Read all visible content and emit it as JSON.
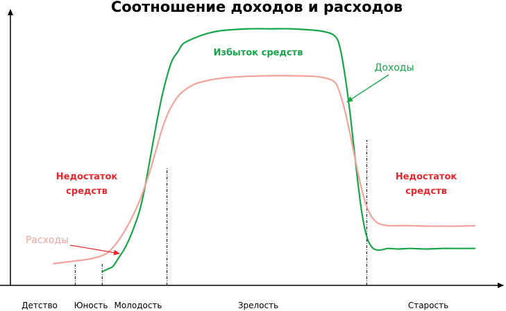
{
  "chart_data": {
    "type": "line",
    "title": "Соотношение доходов и расходов",
    "xlabel": "",
    "ylabel": "",
    "categories": [
      "Детство",
      "Юность",
      "Молодость",
      "Зрелость",
      "Старость"
    ],
    "x_boundaries": [
      12,
      17,
      29,
      66
    ],
    "xlim": [
      0,
      90
    ],
    "ylim": [
      0,
      100
    ],
    "grid": false,
    "series": [
      {
        "name": "Доходы",
        "color": "#17a54a",
        "x": [
          17,
          18,
          19,
          20,
          21,
          22,
          23,
          24,
          25,
          26,
          27,
          28,
          29,
          30,
          31,
          32,
          34,
          36,
          38,
          40,
          44,
          48,
          52,
          56,
          58,
          60,
          61,
          62,
          63,
          64,
          65,
          66,
          67,
          68,
          69,
          70,
          72,
          74,
          77,
          80,
          83,
          86
        ],
        "values": [
          5,
          6,
          7,
          10,
          13,
          17,
          22,
          28,
          37,
          48,
          59,
          69,
          77,
          83,
          86,
          89,
          91,
          92.5,
          93.5,
          94,
          94.5,
          94.5,
          94.5,
          94,
          93.5,
          92,
          88,
          77,
          62,
          44,
          28,
          18,
          14,
          13,
          13.2,
          13.6,
          13.4,
          13.6,
          13.4,
          13.6,
          13.6,
          13.6
        ]
      },
      {
        "name": "Расходы",
        "color": "#f4a29a",
        "x": [
          8,
          10,
          12,
          14,
          16,
          17,
          18,
          19,
          20,
          21,
          22,
          23,
          24,
          25,
          26,
          27,
          28,
          29,
          30,
          31,
          32,
          34,
          36,
          38,
          40,
          44,
          48,
          52,
          56,
          58,
          60,
          61,
          62,
          63,
          64,
          65,
          66,
          67,
          68,
          69,
          70,
          72,
          74,
          77,
          80,
          83,
          86
        ],
        "values": [
          8,
          8.5,
          9,
          9.5,
          10.3,
          11,
          12,
          14,
          16.5,
          19.5,
          23,
          27,
          31.5,
          37,
          43,
          50,
          57,
          62.5,
          66.5,
          69.5,
          71.5,
          74,
          75.2,
          76,
          76.5,
          77,
          77.2,
          77.2,
          77,
          76.5,
          75,
          71,
          64,
          55,
          45,
          36,
          29,
          25,
          23,
          22.3,
          22,
          22,
          22,
          21.8,
          21.8,
          21.8,
          22
        ]
      }
    ],
    "annotations": [
      {
        "text": "Избыток средств",
        "color": "#17a54a"
      },
      {
        "text": "Недостаток средств",
        "color": "#e8262b"
      },
      {
        "text": "Недостаток средств",
        "color": "#e8262b"
      },
      {
        "text": "Доходы",
        "color": "#17a54a"
      },
      {
        "text": "Расходы",
        "color": "#f4a29a"
      }
    ]
  }
}
